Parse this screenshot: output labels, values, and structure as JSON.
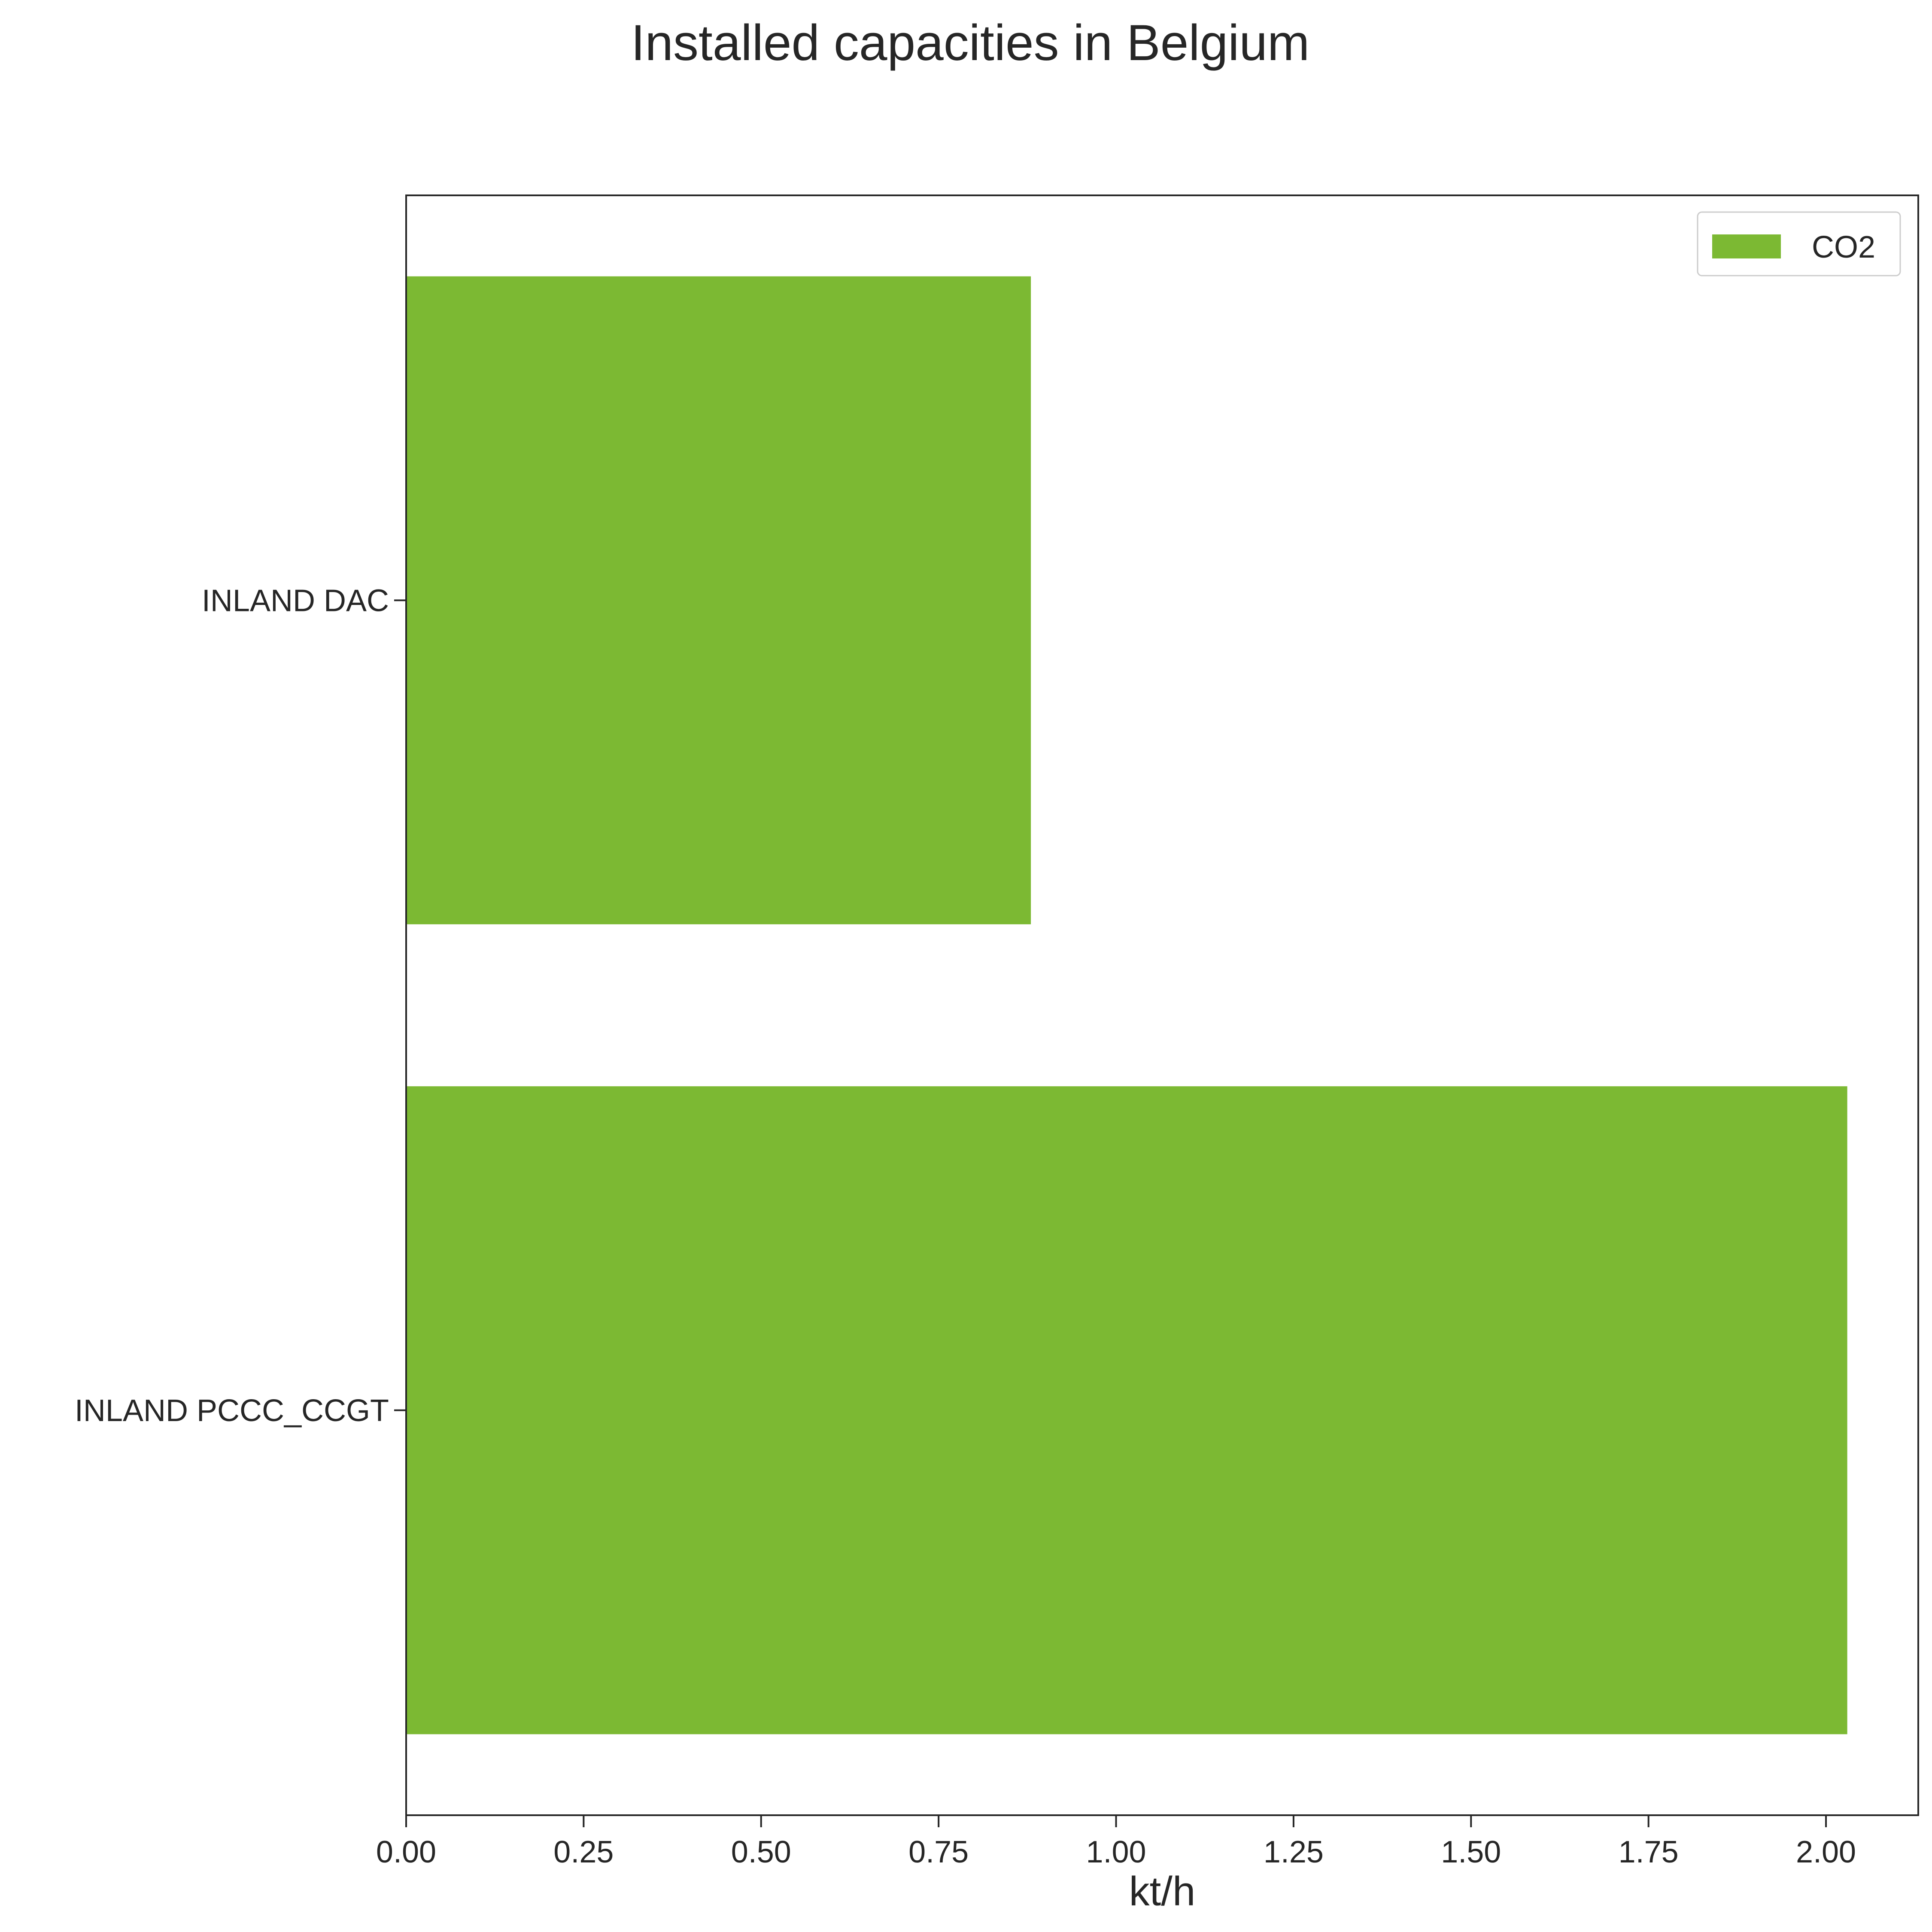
{
  "chart_data": {
    "type": "bar",
    "orientation": "horizontal",
    "title": "Installed capacities in Belgium",
    "xlabel": "kt/h",
    "ylabel": "",
    "categories": [
      "INLAND DAC",
      "INLAND PCCC_CCGT"
    ],
    "series": [
      {
        "name": "CO2",
        "color": "#7cb933",
        "values": [
          0.88,
          2.03
        ]
      }
    ],
    "xlim": [
      0,
      2.13
    ],
    "xticks": [
      0.0,
      0.25,
      0.5,
      0.75,
      1.0,
      1.25,
      1.5,
      1.75,
      2.0
    ],
    "xtick_labels": [
      "0.00",
      "0.25",
      "0.50",
      "0.75",
      "1.00",
      "1.25",
      "1.50",
      "1.75",
      "2.00"
    ],
    "grid": false,
    "legend": {
      "placement": "top-right",
      "entries": [
        "CO2"
      ]
    }
  }
}
